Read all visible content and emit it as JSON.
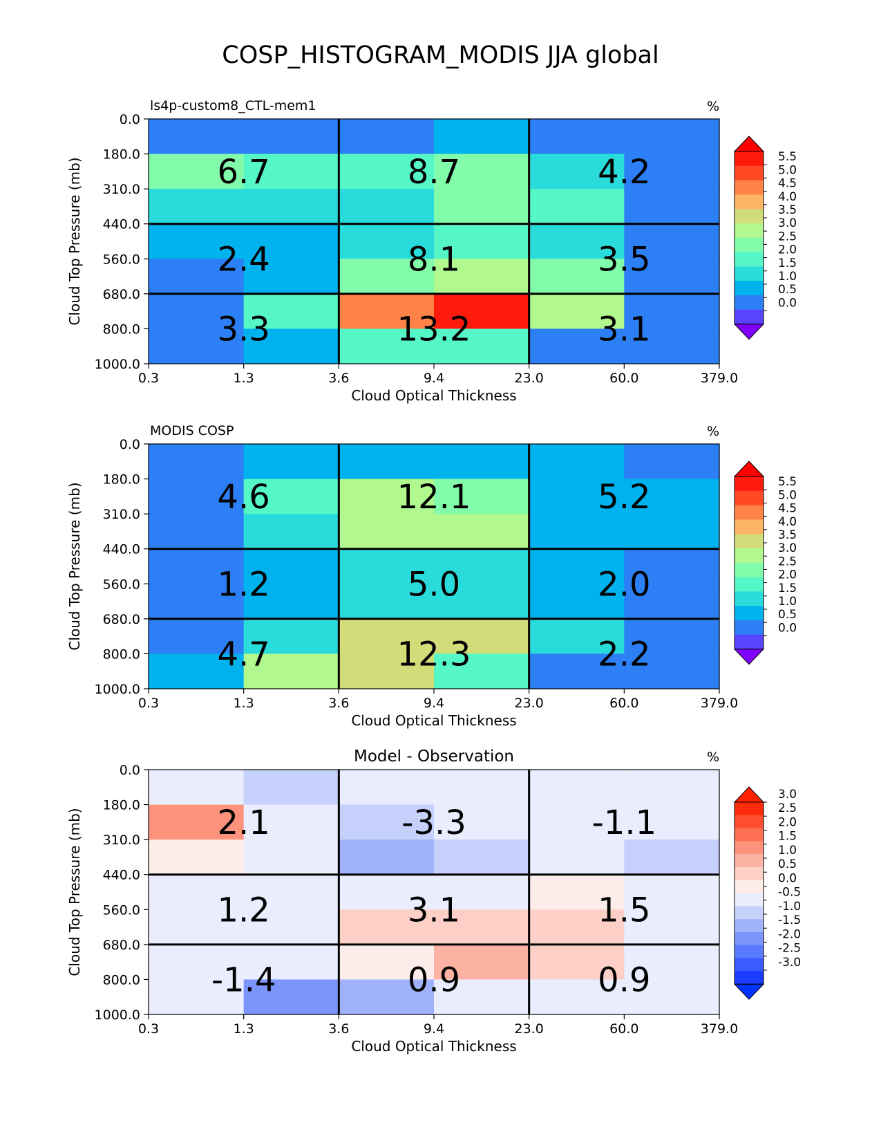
{
  "figure": {
    "title": "COSP_HISTOGRAM_MODIS JJA global"
  },
  "chart_data": [
    {
      "type": "heatmap",
      "title": "",
      "left_title": "ls4p-custom8_CTL-mem1",
      "units": "%",
      "xlabel": "Cloud Optical Thickness",
      "ylabel": "Cloud Top Pressure (mb)",
      "x_edges": [
        "0.3",
        "1.3",
        "3.6",
        "9.4",
        "23.0",
        "60.0",
        "379.0"
      ],
      "y_edges": [
        "0.0",
        "180.0",
        "310.0",
        "440.0",
        "560.0",
        "680.0",
        "800.0",
        "1000.0"
      ],
      "values": [
        [
          0.1,
          0.1,
          0.1,
          0.8,
          0.4,
          0.1
        ],
        [
          2.2,
          1.8,
          1.8,
          2.2,
          1.3,
          0.1
        ],
        [
          1.3,
          1.3,
          1.3,
          2.2,
          1.8,
          0.1
        ],
        [
          0.8,
          0.8,
          1.3,
          1.8,
          1.3,
          0.1
        ],
        [
          0.1,
          0.8,
          2.2,
          2.8,
          2.2,
          0.1
        ],
        [
          0.1,
          1.8,
          4.3,
          5.3,
          2.8,
          0.1
        ],
        [
          0.1,
          0.8,
          1.8,
          1.8,
          0.1,
          0.1
        ]
      ],
      "block_sums": [
        [
          "6.7",
          "8.7",
          "4.2"
        ],
        [
          "2.4",
          "8.1",
          "3.5"
        ],
        [
          "3.3",
          "13.2",
          "3.1"
        ]
      ],
      "colorbar": {
        "levels": [
          -0.5,
          0.0,
          0.5,
          1.0,
          1.5,
          2.0,
          2.5,
          3.0,
          3.5,
          4.0,
          4.5,
          5.0,
          5.5,
          6.0
        ],
        "tick_labels": [
          "0.0",
          "0.5",
          "1.0",
          "1.5",
          "2.0",
          "2.5",
          "3.0",
          "3.5",
          "4.0",
          "4.5",
          "5.0",
          "5.5"
        ],
        "colors": [
          "#5a43ff",
          "#2c7ff5",
          "#00b2ee",
          "#2adbdb",
          "#55f7c7",
          "#82fcaa",
          "#b1f88e",
          "#d2dd7a",
          "#fdb465",
          "#ff8247",
          "#ff4a25",
          "#ff1a0e"
        ],
        "under_color": "#8000ff",
        "over_color": "#ff0000"
      }
    },
    {
      "type": "heatmap",
      "title": "",
      "left_title": "MODIS COSP",
      "units": "%",
      "xlabel": "Cloud Optical Thickness",
      "ylabel": "Cloud Top Pressure (mb)",
      "x_edges": [
        "0.3",
        "1.3",
        "3.6",
        "9.4",
        "23.0",
        "60.0",
        "379.0"
      ],
      "y_edges": [
        "0.0",
        "180.0",
        "310.0",
        "440.0",
        "560.0",
        "680.0",
        "800.0",
        "1000.0"
      ],
      "values": [
        [
          0.1,
          0.8,
          0.8,
          0.8,
          0.8,
          0.1
        ],
        [
          0.1,
          1.8,
          2.8,
          2.2,
          0.8,
          0.8
        ],
        [
          0.1,
          1.3,
          2.8,
          2.8,
          0.8,
          0.8
        ],
        [
          0.1,
          0.8,
          1.3,
          1.3,
          0.8,
          0.1
        ],
        [
          0.1,
          0.8,
          1.3,
          1.3,
          0.8,
          0.1
        ],
        [
          0.1,
          1.3,
          3.3,
          3.3,
          1.3,
          0.1
        ],
        [
          0.8,
          2.8,
          3.1,
          1.8,
          0.1,
          0.1
        ]
      ],
      "block_sums": [
        [
          "4.6",
          "12.1",
          "5.2"
        ],
        [
          "1.2",
          "5.0",
          "2.0"
        ],
        [
          "4.7",
          "12.3",
          "2.2"
        ]
      ],
      "colorbar": {
        "levels": [
          -0.5,
          0.0,
          0.5,
          1.0,
          1.5,
          2.0,
          2.5,
          3.0,
          3.5,
          4.0,
          4.5,
          5.0,
          5.5,
          6.0
        ],
        "tick_labels": [
          "0.0",
          "0.5",
          "1.0",
          "1.5",
          "2.0",
          "2.5",
          "3.0",
          "3.5",
          "4.0",
          "4.5",
          "5.0",
          "5.5"
        ],
        "colors": [
          "#5a43ff",
          "#2c7ff5",
          "#00b2ee",
          "#2adbdb",
          "#55f7c7",
          "#82fcaa",
          "#b1f88e",
          "#d2dd7a",
          "#fdb465",
          "#ff8247",
          "#ff4a25",
          "#ff1a0e"
        ],
        "under_color": "#8000ff",
        "over_color": "#ff0000"
      }
    },
    {
      "type": "heatmap",
      "title": "Model - Observation",
      "left_title": "",
      "units": "%",
      "xlabel": "Cloud Optical Thickness",
      "ylabel": "Cloud Top Pressure (mb)",
      "x_edges": [
        "0.3",
        "1.3",
        "3.6",
        "9.4",
        "23.0",
        "60.0",
        "379.0"
      ],
      "y_edges": [
        "0.0",
        "180.0",
        "310.0",
        "440.0",
        "560.0",
        "680.0",
        "800.0",
        "1000.0"
      ],
      "values": [
        [
          0.2,
          -0.7,
          -0.2,
          0.2,
          0.2,
          -0.2
        ],
        [
          1.8,
          -0.2,
          -0.7,
          -0.2,
          0.2,
          -0.2
        ],
        [
          0.7,
          -0.2,
          -1.2,
          -0.7,
          0.2,
          -0.7
        ],
        [
          0.2,
          0.2,
          0.2,
          0.2,
          0.7,
          -0.2
        ],
        [
          0.2,
          0.2,
          1.2,
          1.2,
          1.2,
          -0.2
        ],
        [
          0.2,
          0.2,
          0.7,
          1.6,
          1.2,
          -0.2
        ],
        [
          -0.2,
          -1.6,
          -1.2,
          0.2,
          0.2,
          -0.2
        ]
      ],
      "block_sums": [
        [
          "2.1",
          "-3.3",
          "-1.1"
        ],
        [
          "1.2",
          "3.1",
          "1.5"
        ],
        [
          "-1.4",
          "0.9",
          "0.9"
        ]
      ],
      "colorbar": {
        "levels": [
          -3.25,
          -2.75,
          -2.25,
          -1.75,
          -1.25,
          -0.75,
          -0.25,
          0.25,
          0.75,
          1.25,
          1.75,
          2.25,
          2.75,
          3.25
        ],
        "tick_labels": [
          "-3.0",
          "-2.5",
          "-2.0",
          "-1.5",
          "-1.0",
          "-0.5",
          "0.0",
          "0.5",
          "1.0",
          "1.5",
          "2.0",
          "2.5",
          "3.0"
        ],
        "colors": [
          "#1c3cff",
          "#3a5cff",
          "#5a7bff",
          "#7b95fc",
          "#a0b2fb",
          "#c6d1fb",
          "#e9edfd",
          "#fdedea",
          "#fdd0c7",
          "#fdb3a3",
          "#fd937d",
          "#fd7053",
          "#fe4e2f",
          "#ff2c0c"
        ],
        "under_color": "#0033ff",
        "over_color": "#ff2200"
      }
    }
  ]
}
